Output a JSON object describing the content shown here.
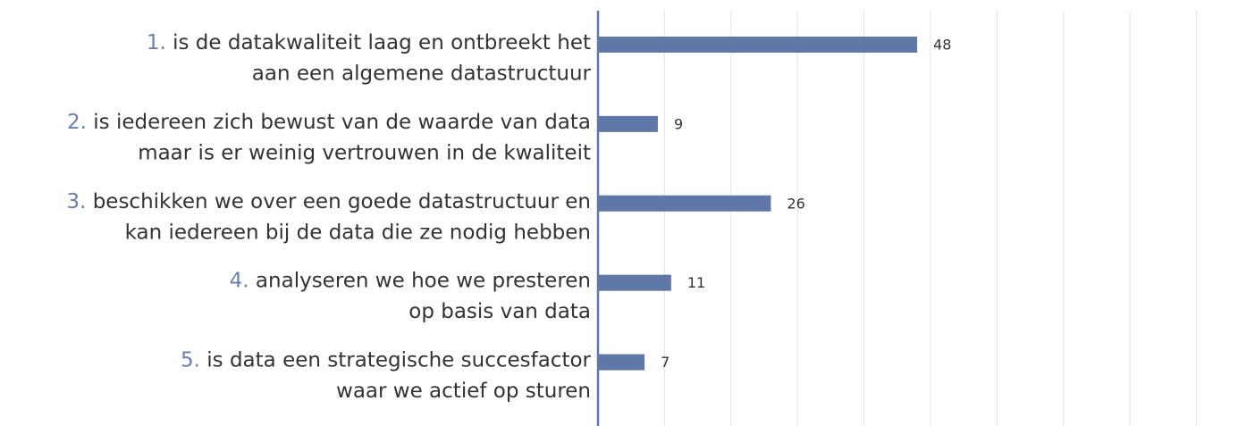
{
  "chart_data": {
    "type": "bar",
    "orientation": "horizontal",
    "category_numbers": [
      "1.",
      "2.",
      "3.",
      "4.",
      "5."
    ],
    "categories": [
      [
        "is de datakwaliteit laag en ontbreekt het",
        "aan een algemene datastructuur"
      ],
      [
        "is iedereen zich bewust van de waarde van data",
        "maar is er weinig vertrouwen in de kwaliteit"
      ],
      [
        "beschikken we over een goede datastructuur en",
        "kan iedereen bij de data die ze nodig hebben"
      ],
      [
        "analyseren we hoe we presteren",
        "op basis van data"
      ],
      [
        "is data een strategische succesfactor",
        "waar we actief op sturen"
      ]
    ],
    "values": [
      48,
      9,
      26,
      11,
      7
    ],
    "color": "#6078a8",
    "number_color": "#6a80b2",
    "xlim": [
      0,
      98
    ],
    "xticks": [
      0,
      10,
      20,
      30,
      40,
      50,
      60,
      70,
      80,
      90
    ],
    "grid": true
  }
}
